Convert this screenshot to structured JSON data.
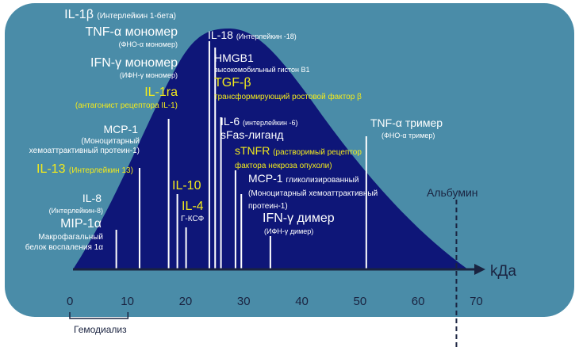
{
  "colors": {
    "panel": "#4a8ca8",
    "curve": "#0e1678",
    "axis": "#1a2340",
    "marker": "#ffffff",
    "highlight": "#f2ea1c"
  },
  "axis": {
    "unit": "kДа",
    "ticks": [
      "0",
      "10",
      "20",
      "30",
      "40",
      "50",
      "60",
      "70"
    ],
    "range": [
      0,
      70
    ]
  },
  "albumin": {
    "label": "Альбумин",
    "kda": 66.5
  },
  "hemodialysis": {
    "label": "Гемодиализ",
    "range": [
      0,
      10
    ]
  },
  "molecules": [
    {
      "id": "mip1a",
      "kda": 8,
      "name": "MIP-1α",
      "sub": "Макрофагальный\nбелок воспаления 1α"
    },
    {
      "id": "il8",
      "kda": 8.5,
      "name": "IL-8",
      "sub": "(Интерлейкин-8)"
    },
    {
      "id": "il13",
      "kda": 12,
      "name": "IL-13",
      "sub": "(Интерлейкин 13)"
    },
    {
      "id": "mcp1",
      "kda": 12.5,
      "name": "MCP-1",
      "sub": "(Моноцитарный\nхемоаттрактивный протеин-1)"
    },
    {
      "id": "il1ra",
      "kda": 17,
      "name": "IL-1ra",
      "sub": "(антагонист рецептора IL-1)"
    },
    {
      "id": "ifng-mono",
      "kda": 17,
      "name": "IFN-γ мономер",
      "sub": "(ИФН-γ мономер)"
    },
    {
      "id": "tnfa-mono",
      "kda": 17.5,
      "name": "TNF-α мономер",
      "sub": "(ФНО-α мономер)"
    },
    {
      "id": "il1b",
      "kda": 17.5,
      "name": "IL-1β",
      "sub": "(Интерлейкин 1-бета)"
    },
    {
      "id": "il10",
      "kda": 18.5,
      "name": "IL-10",
      "sub": ""
    },
    {
      "id": "il4",
      "kda": 19,
      "name": "IL-4",
      "sub": ""
    },
    {
      "id": "gcsf",
      "kda": 20,
      "name": "Г-КСФ",
      "sub": ""
    },
    {
      "id": "il18",
      "kda": 24,
      "name": "IL-18",
      "sub": "(Интерлейкин -18)"
    },
    {
      "id": "hmgb1",
      "kda": 25,
      "name": "HMGB1",
      "sub": "высокомобильный гистон B1"
    },
    {
      "id": "tgfb",
      "kda": 25.5,
      "name": "TGF-β",
      "sub": "трансформирующий ростовой фактор β"
    },
    {
      "id": "il6",
      "kda": 26,
      "name": "IL-6",
      "sub": "(интерлейкин -6)"
    },
    {
      "id": "sfas",
      "kda": 26.5,
      "name": "sFas-лиганд",
      "sub": ""
    },
    {
      "id": "stnfr",
      "kda": 28.5,
      "name": "sTNFR",
      "sub": "(растворимый рецептор\nфактора некроза опухоли)"
    },
    {
      "id": "mcp1-gly",
      "kda": 29.5,
      "name": "MCP-1",
      "sub": "гликолизированный\n(Моноцитарный хемоаттрактивный\nпротеин-1)"
    },
    {
      "id": "ifng-dimer",
      "kda": 34.5,
      "name": "IFN-γ димер",
      "sub": "(ИФН-γ димер)"
    },
    {
      "id": "tnfa-trimer",
      "kda": 51,
      "name": "TNF-α тример",
      "sub": "(ФНО-α тример)"
    }
  ]
}
